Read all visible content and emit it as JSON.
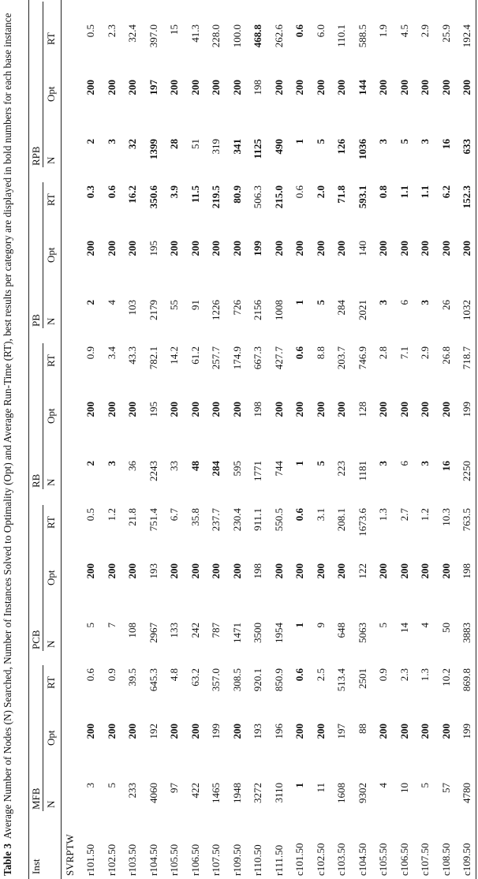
{
  "caption": {
    "label": "Table 3",
    "text": "Average Number of Nodes (N) Searched, Number of Instances Solved to Optimality (Opt) and Average Run-Time (RT), best results per category are displayed in bold numbers for each base instance"
  },
  "inst_header": "Inst",
  "section_label": "SVRPTW",
  "groups": [
    "MFB",
    "PCB",
    "RB",
    "PB",
    "RPB"
  ],
  "subheaders": [
    "N",
    "Opt",
    "RT"
  ],
  "rows": [
    {
      "inst": "r101.50",
      "cells": [
        [
          "3",
          0
        ],
        [
          "200",
          1
        ],
        [
          "0.6",
          0
        ],
        [
          "5",
          0
        ],
        [
          "200",
          1
        ],
        [
          "0.5",
          0
        ],
        [
          "2",
          1
        ],
        [
          "200",
          1
        ],
        [
          "0.9",
          0
        ],
        [
          "2",
          1
        ],
        [
          "200",
          1
        ],
        [
          "0.3",
          1
        ],
        [
          "2",
          1
        ],
        [
          "200",
          1
        ],
        [
          "0.5",
          0
        ]
      ]
    },
    {
      "inst": "r102.50",
      "cells": [
        [
          "5",
          0
        ],
        [
          "200",
          1
        ],
        [
          "0.9",
          0
        ],
        [
          "7",
          0
        ],
        [
          "200",
          1
        ],
        [
          "1.2",
          0
        ],
        [
          "3",
          1
        ],
        [
          "200",
          1
        ],
        [
          "3.4",
          0
        ],
        [
          "4",
          0
        ],
        [
          "200",
          1
        ],
        [
          "0.6",
          1
        ],
        [
          "3",
          1
        ],
        [
          "200",
          1
        ],
        [
          "2.3",
          0
        ]
      ]
    },
    {
      "inst": "r103.50",
      "cells": [
        [
          "233",
          0
        ],
        [
          "200",
          1
        ],
        [
          "39.5",
          0
        ],
        [
          "108",
          0
        ],
        [
          "200",
          1
        ],
        [
          "21.8",
          0
        ],
        [
          "36",
          0
        ],
        [
          "200",
          1
        ],
        [
          "43.3",
          0
        ],
        [
          "103",
          0
        ],
        [
          "200",
          1
        ],
        [
          "16.2",
          1
        ],
        [
          "32",
          1
        ],
        [
          "200",
          1
        ],
        [
          "32.4",
          0
        ]
      ]
    },
    {
      "inst": "r104.50",
      "cells": [
        [
          "4060",
          0
        ],
        [
          "192",
          0
        ],
        [
          "645.3",
          0
        ],
        [
          "2967",
          0
        ],
        [
          "193",
          0
        ],
        [
          "751.4",
          0
        ],
        [
          "2243",
          0
        ],
        [
          "195",
          0
        ],
        [
          "782.1",
          0
        ],
        [
          "2179",
          0
        ],
        [
          "195",
          0
        ],
        [
          "350.6",
          1
        ],
        [
          "1399",
          1
        ],
        [
          "197",
          1
        ],
        [
          "397.0",
          0
        ]
      ]
    },
    {
      "inst": "r105.50",
      "cells": [
        [
          "97",
          0
        ],
        [
          "200",
          1
        ],
        [
          "4.8",
          0
        ],
        [
          "133",
          0
        ],
        [
          "200",
          1
        ],
        [
          "6.7",
          0
        ],
        [
          "33",
          0
        ],
        [
          "200",
          1
        ],
        [
          "14.2",
          0
        ],
        [
          "55",
          0
        ],
        [
          "200",
          1
        ],
        [
          "3.9",
          1
        ],
        [
          "28",
          1
        ],
        [
          "200",
          1
        ],
        [
          "15",
          0
        ]
      ]
    },
    {
      "inst": "r106.50",
      "cells": [
        [
          "422",
          0
        ],
        [
          "200",
          1
        ],
        [
          "63.2",
          0
        ],
        [
          "242",
          0
        ],
        [
          "200",
          1
        ],
        [
          "35.8",
          0
        ],
        [
          "48",
          1
        ],
        [
          "200",
          1
        ],
        [
          "61.2",
          0
        ],
        [
          "91",
          0
        ],
        [
          "200",
          1
        ],
        [
          "11.5",
          1
        ],
        [
          "51",
          0
        ],
        [
          "200",
          1
        ],
        [
          "41.3",
          0
        ]
      ]
    },
    {
      "inst": "r107.50",
      "cells": [
        [
          "1465",
          0
        ],
        [
          "199",
          0
        ],
        [
          "357.0",
          0
        ],
        [
          "787",
          0
        ],
        [
          "200",
          1
        ],
        [
          "237.7",
          0
        ],
        [
          "284",
          1
        ],
        [
          "200",
          1
        ],
        [
          "257.7",
          0
        ],
        [
          "1226",
          0
        ],
        [
          "200",
          1
        ],
        [
          "219.5",
          1
        ],
        [
          "319",
          0
        ],
        [
          "200",
          1
        ],
        [
          "228.0",
          0
        ]
      ]
    },
    {
      "inst": "r109.50",
      "cells": [
        [
          "1948",
          0
        ],
        [
          "200",
          1
        ],
        [
          "308.5",
          0
        ],
        [
          "1471",
          0
        ],
        [
          "200",
          1
        ],
        [
          "230.4",
          0
        ],
        [
          "595",
          0
        ],
        [
          "200",
          1
        ],
        [
          "174.9",
          0
        ],
        [
          "726",
          0
        ],
        [
          "200",
          1
        ],
        [
          "80.9",
          1
        ],
        [
          "341",
          1
        ],
        [
          "200",
          1
        ],
        [
          "100.0",
          0
        ]
      ]
    },
    {
      "inst": "r110.50",
      "cells": [
        [
          "3272",
          0
        ],
        [
          "193",
          0
        ],
        [
          "920.1",
          0
        ],
        [
          "3500",
          0
        ],
        [
          "198",
          0
        ],
        [
          "911.1",
          0
        ],
        [
          "1771",
          0
        ],
        [
          "198",
          0
        ],
        [
          "667.3",
          0
        ],
        [
          "2156",
          0
        ],
        [
          "199",
          1
        ],
        [
          "506.3",
          0
        ],
        [
          "1125",
          1
        ],
        [
          "198",
          0
        ],
        [
          "468.8",
          1
        ]
      ]
    },
    {
      "inst": "r111.50",
      "cells": [
        [
          "3110",
          0
        ],
        [
          "196",
          0
        ],
        [
          "850.9",
          0
        ],
        [
          "1954",
          0
        ],
        [
          "200",
          1
        ],
        [
          "550.5",
          0
        ],
        [
          "744",
          0
        ],
        [
          "200",
          1
        ],
        [
          "427.7",
          0
        ],
        [
          "1008",
          0
        ],
        [
          "200",
          1
        ],
        [
          "215.0",
          1
        ],
        [
          "490",
          1
        ],
        [
          "200",
          1
        ],
        [
          "262.6",
          0
        ]
      ]
    },
    {
      "inst": "c101.50",
      "cells": [
        [
          "1",
          1
        ],
        [
          "200",
          1
        ],
        [
          "0.6",
          1
        ],
        [
          "1",
          1
        ],
        [
          "200",
          1
        ],
        [
          "0.6",
          1
        ],
        [
          "1",
          1
        ],
        [
          "200",
          1
        ],
        [
          "0.6",
          1
        ],
        [
          "1",
          1
        ],
        [
          "200",
          1
        ],
        [
          "0.6",
          0
        ],
        [
          "1",
          1
        ],
        [
          "200",
          1
        ],
        [
          "0.6",
          1
        ]
      ]
    },
    {
      "inst": "c102.50",
      "cells": [
        [
          "11",
          0
        ],
        [
          "200",
          1
        ],
        [
          "2.5",
          0
        ],
        [
          "9",
          0
        ],
        [
          "200",
          1
        ],
        [
          "3.1",
          0
        ],
        [
          "5",
          1
        ],
        [
          "200",
          1
        ],
        [
          "8.8",
          0
        ],
        [
          "5",
          1
        ],
        [
          "200",
          1
        ],
        [
          "2.0",
          1
        ],
        [
          "5",
          1
        ],
        [
          "200",
          1
        ],
        [
          "6.0",
          0
        ]
      ]
    },
    {
      "inst": "c103.50",
      "cells": [
        [
          "1608",
          0
        ],
        [
          "197",
          0
        ],
        [
          "513.4",
          0
        ],
        [
          "648",
          0
        ],
        [
          "200",
          1
        ],
        [
          "208.1",
          0
        ],
        [
          "223",
          0
        ],
        [
          "200",
          1
        ],
        [
          "203.7",
          0
        ],
        [
          "284",
          0
        ],
        [
          "200",
          1
        ],
        [
          "71.8",
          1
        ],
        [
          "126",
          1
        ],
        [
          "200",
          1
        ],
        [
          "110.1",
          0
        ]
      ]
    },
    {
      "inst": "c104.50",
      "cells": [
        [
          "9302",
          0
        ],
        [
          "88",
          0
        ],
        [
          "2501",
          0
        ],
        [
          "5063",
          0
        ],
        [
          "122",
          0
        ],
        [
          "1673.6",
          0
        ],
        [
          "1181",
          0
        ],
        [
          "128",
          0
        ],
        [
          "746.9",
          0
        ],
        [
          "2021",
          0
        ],
        [
          "140",
          0
        ],
        [
          "593.1",
          1
        ],
        [
          "1036",
          1
        ],
        [
          "144",
          1
        ],
        [
          "588.5",
          0
        ]
      ]
    },
    {
      "inst": "c105.50",
      "cells": [
        [
          "4",
          0
        ],
        [
          "200",
          1
        ],
        [
          "0.9",
          0
        ],
        [
          "5",
          0
        ],
        [
          "200",
          1
        ],
        [
          "1.3",
          0
        ],
        [
          "3",
          1
        ],
        [
          "200",
          1
        ],
        [
          "2.8",
          0
        ],
        [
          "3",
          1
        ],
        [
          "200",
          1
        ],
        [
          "0.8",
          1
        ],
        [
          "3",
          1
        ],
        [
          "200",
          1
        ],
        [
          "1.9",
          0
        ]
      ]
    },
    {
      "inst": "c106.50",
      "cells": [
        [
          "10",
          0
        ],
        [
          "200",
          1
        ],
        [
          "2.3",
          0
        ],
        [
          "14",
          0
        ],
        [
          "200",
          1
        ],
        [
          "2.7",
          0
        ],
        [
          "6",
          0
        ],
        [
          "200",
          1
        ],
        [
          "7.1",
          0
        ],
        [
          "6",
          0
        ],
        [
          "200",
          1
        ],
        [
          "1.1",
          1
        ],
        [
          "5",
          1
        ],
        [
          "200",
          1
        ],
        [
          "4.5",
          0
        ]
      ]
    },
    {
      "inst": "c107.50",
      "cells": [
        [
          "5",
          0
        ],
        [
          "200",
          1
        ],
        [
          "1.3",
          0
        ],
        [
          "4",
          0
        ],
        [
          "200",
          1
        ],
        [
          "1.2",
          0
        ],
        [
          "3",
          1
        ],
        [
          "200",
          1
        ],
        [
          "2.9",
          0
        ],
        [
          "3",
          1
        ],
        [
          "200",
          1
        ],
        [
          "1.1",
          1
        ],
        [
          "3",
          1
        ],
        [
          "200",
          1
        ],
        [
          "2.9",
          0
        ]
      ]
    },
    {
      "inst": "c108.50",
      "cells": [
        [
          "57",
          0
        ],
        [
          "200",
          1
        ],
        [
          "10.2",
          0
        ],
        [
          "50",
          0
        ],
        [
          "200",
          1
        ],
        [
          "10.3",
          0
        ],
        [
          "16",
          1
        ],
        [
          "200",
          1
        ],
        [
          "26.8",
          0
        ],
        [
          "26",
          0
        ],
        [
          "200",
          1
        ],
        [
          "6.2",
          1
        ],
        [
          "16",
          1
        ],
        [
          "200",
          1
        ],
        [
          "25.9",
          0
        ]
      ]
    },
    {
      "inst": "c109.50",
      "cells": [
        [
          "4780",
          0
        ],
        [
          "199",
          0
        ],
        [
          "869.8",
          0
        ],
        [
          "3883",
          0
        ],
        [
          "198",
          0
        ],
        [
          "763.5",
          0
        ],
        [
          "2250",
          0
        ],
        [
          "199",
          0
        ],
        [
          "718.7",
          0
        ],
        [
          "1032",
          0
        ],
        [
          "200",
          1
        ],
        [
          "152.3",
          1
        ],
        [
          "633",
          1
        ],
        [
          "200",
          1
        ],
        [
          "192.4",
          0
        ]
      ]
    }
  ]
}
